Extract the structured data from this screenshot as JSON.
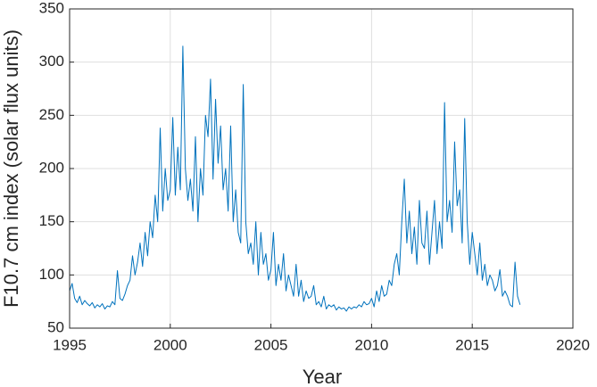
{
  "chart_data": {
    "type": "line",
    "xlabel": "Year",
    "ylabel": "F10.7 cm index (solar flux units)",
    "color": "#0072bd",
    "grid": true,
    "xlim": [
      1995,
      2020
    ],
    "xticks": [
      1995,
      2000,
      2005,
      2010,
      2015,
      2020
    ],
    "ylim": [
      50,
      350
    ],
    "yticks": [
      50,
      100,
      150,
      200,
      250,
      300,
      350
    ],
    "x": [
      1995,
      1995.125,
      1995.25,
      1995.375,
      1995.5,
      1995.625,
      1995.75,
      1995.875,
      1996,
      1996.125,
      1996.25,
      1996.375,
      1996.5,
      1996.625,
      1996.75,
      1996.875,
      1997,
      1997.125,
      1997.25,
      1997.375,
      1997.5,
      1997.625,
      1997.75,
      1997.875,
      1998,
      1998.125,
      1998.25,
      1998.375,
      1998.5,
      1998.625,
      1998.75,
      1998.875,
      1999,
      1999.125,
      1999.25,
      1999.375,
      1999.5,
      1999.625,
      1999.75,
      1999.875,
      2000,
      2000.125,
      2000.25,
      2000.375,
      2000.5,
      2000.625,
      2000.75,
      2000.875,
      2001,
      2001.125,
      2001.25,
      2001.375,
      2001.5,
      2001.625,
      2001.75,
      2001.875,
      2002,
      2002.125,
      2002.25,
      2002.375,
      2002.5,
      2002.625,
      2002.75,
      2002.875,
      2003,
      2003.125,
      2003.25,
      2003.375,
      2003.5,
      2003.625,
      2003.75,
      2003.875,
      2004,
      2004.125,
      2004.25,
      2004.375,
      2004.5,
      2004.625,
      2004.75,
      2004.875,
      2005,
      2005.125,
      2005.25,
      2005.375,
      2005.5,
      2005.625,
      2005.75,
      2005.875,
      2006,
      2006.125,
      2006.25,
      2006.375,
      2006.5,
      2006.625,
      2006.75,
      2006.875,
      2007,
      2007.125,
      2007.25,
      2007.375,
      2007.5,
      2007.625,
      2007.75,
      2007.875,
      2008,
      2008.125,
      2008.25,
      2008.375,
      2008.5,
      2008.625,
      2008.75,
      2008.875,
      2009,
      2009.125,
      2009.25,
      2009.375,
      2009.5,
      2009.625,
      2009.75,
      2009.875,
      2010,
      2010.125,
      2010.25,
      2010.375,
      2010.5,
      2010.625,
      2010.75,
      2010.875,
      2011,
      2011.125,
      2011.25,
      2011.375,
      2011.5,
      2011.625,
      2011.75,
      2011.875,
      2012,
      2012.125,
      2012.25,
      2012.375,
      2012.5,
      2012.625,
      2012.75,
      2012.875,
      2013,
      2013.125,
      2013.25,
      2013.375,
      2013.5,
      2013.625,
      2013.75,
      2013.875,
      2014,
      2014.125,
      2014.25,
      2014.375,
      2014.5,
      2014.625,
      2014.75,
      2014.875,
      2015,
      2015.125,
      2015.25,
      2015.375,
      2015.5,
      2015.625,
      2015.75,
      2015.875,
      2016,
      2016.125,
      2016.25,
      2016.375,
      2016.5,
      2016.625,
      2016.75,
      2016.875,
      2017,
      2017.125,
      2017.25,
      2017.375
    ],
    "values": [
      85,
      92,
      78,
      74,
      80,
      72,
      76,
      73,
      71,
      74,
      69,
      72,
      70,
      73,
      68,
      71,
      70,
      75,
      72,
      104,
      78,
      76,
      82,
      90,
      95,
      118,
      100,
      112,
      130,
      108,
      140,
      118,
      150,
      135,
      175,
      150,
      238,
      160,
      200,
      170,
      180,
      248,
      175,
      220,
      180,
      315,
      200,
      170,
      190,
      160,
      230,
      150,
      200,
      175,
      250,
      230,
      284,
      190,
      265,
      205,
      240,
      180,
      200,
      160,
      240,
      150,
      180,
      140,
      130,
      279,
      150,
      120,
      130,
      110,
      150,
      100,
      140,
      110,
      120,
      95,
      105,
      140,
      90,
      110,
      95,
      120,
      85,
      100,
      90,
      80,
      110,
      80,
      95,
      75,
      85,
      78,
      80,
      90,
      72,
      75,
      70,
      80,
      68,
      72,
      70,
      72,
      67,
      70,
      68,
      69,
      66,
      70,
      68,
      70,
      69,
      72,
      70,
      75,
      72,
      73,
      78,
      70,
      85,
      75,
      90,
      80,
      82,
      95,
      90,
      110,
      120,
      100,
      150,
      190,
      130,
      160,
      120,
      145,
      110,
      170,
      130,
      125,
      160,
      110,
      140,
      170,
      120,
      150,
      125,
      262,
      150,
      170,
      140,
      225,
      165,
      180,
      130,
      247,
      150,
      110,
      140,
      120,
      100,
      130,
      95,
      110,
      90,
      100,
      95,
      85,
      90,
      105,
      80,
      85,
      80,
      72,
      70,
      112,
      80,
      72
    ]
  }
}
